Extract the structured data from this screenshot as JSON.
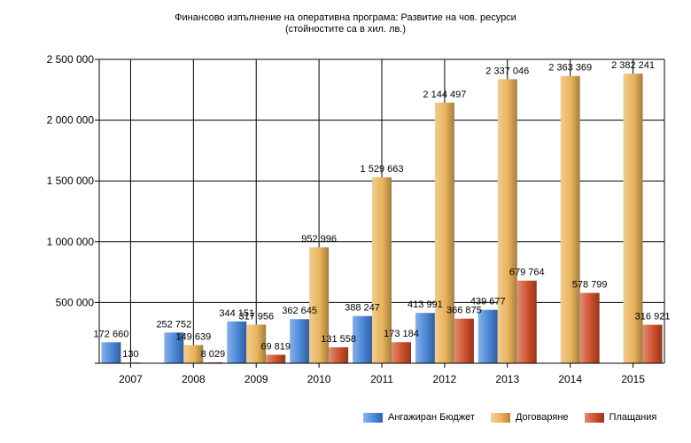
{
  "chart_data": {
    "type": "bar",
    "title": "Финансово изпълнение на оперативна програма: Развитие на чов. ресурси",
    "subtitle": "(стойностите са в хил. лв.)",
    "categories": [
      "2007",
      "2008",
      "2009",
      "2010",
      "2011",
      "2012",
      "2013",
      "2014",
      "2015"
    ],
    "series": [
      {
        "name": "Ангажиран Бюджет",
        "color": "#4a86d8",
        "values": [
          172660,
          252752,
          344151,
          362645,
          388247,
          413991,
          439677,
          null,
          null
        ],
        "labels": [
          "172 660",
          "252 752",
          "344 151",
          "362 645",
          "388 247",
          "413 991",
          "439 677",
          "",
          ""
        ]
      },
      {
        "name": "Договаряне",
        "color": "#e8b25a",
        "values": [
          130,
          149639,
          317956,
          952996,
          1529663,
          2144497,
          2337046,
          2363369,
          2382241
        ],
        "labels": [
          "130",
          "149 639",
          "317 956",
          "952 996",
          "1 529 663",
          "2 144 497",
          "2 337 046",
          "2 363 369",
          "2 382 241"
        ]
      },
      {
        "name": "Плащания",
        "color": "#cf4f2c",
        "values": [
          null,
          8029,
          69819,
          131558,
          173184,
          366875,
          679764,
          578799,
          316921
        ],
        "labels": [
          "",
          "8 029",
          "69 819",
          "131 558",
          "173 184",
          "366 875",
          "679 764",
          "578 799",
          "316 921"
        ]
      }
    ],
    "ylim": [
      0,
      2500000
    ],
    "yticks": [
      0,
      500000,
      1000000,
      1500000,
      2000000,
      2500000
    ],
    "ytick_labels": [
      "",
      "500 000",
      "1 000 000",
      "1 500 000",
      "2 000 000",
      "2 500 000"
    ],
    "grid": true,
    "legend_position": "bottom-right"
  }
}
